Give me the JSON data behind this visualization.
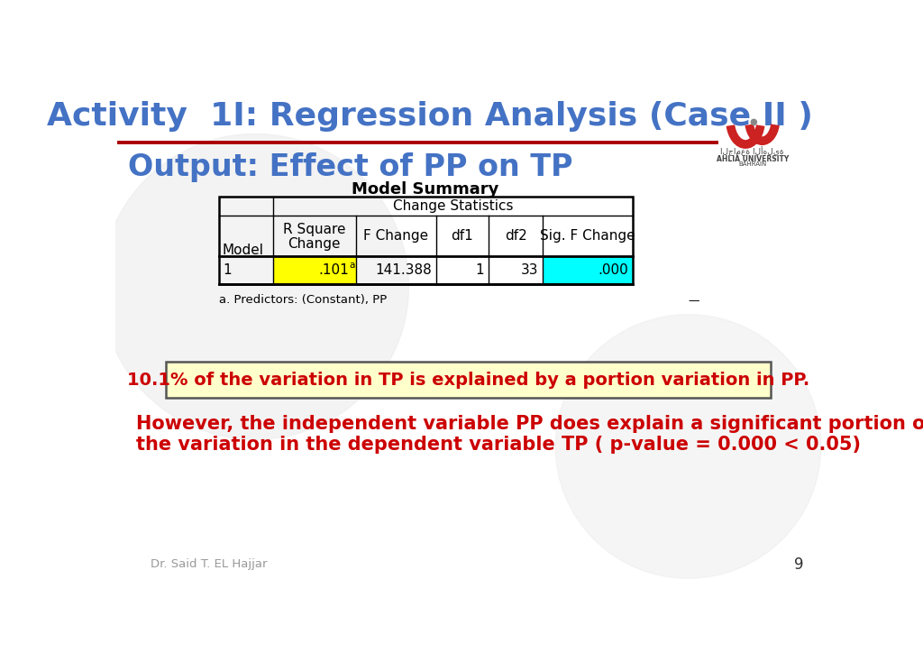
{
  "title": "Activity  1I: Regression Analysis (Case II )",
  "title_color": "#4472C4",
  "title_fontsize": 26,
  "subtitle": "Output: Effect of PP on TP",
  "subtitle_color": "#4472C4",
  "subtitle_fontsize": 24,
  "bg_color": "#FFFFFF",
  "table_title": "Model Summary",
  "table_headers_row2": [
    "Model",
    "R Square\nChange",
    "F Change",
    "df1",
    "df2",
    "Sig. F Change"
  ],
  "highlight_yellow": "#FFFF00",
  "highlight_cyan": "#00FFFF",
  "box_text": "10.1% of the variation in TP is explained by a portion variation in PP.",
  "box_bg": "#FFFFCC",
  "box_border": "#555555",
  "box_text_color": "#CC0000",
  "para_text_line1": "However, the independent variable PP does explain a significant portion of",
  "para_text_line2": "the variation in the dependent variable TP ( p-value = 0.000 < 0.05)",
  "para_text_color": "#CC0000",
  "footer_text": "Dr. Said T. EL Hajjar",
  "page_number": "9",
  "separator_color": "#AA0000",
  "logo_red": "#CC2222",
  "logo_gray": "#888888",
  "logo_text_arabic": "الجامعة الأهلية",
  "logo_text_en1": "AHLIA UNIVERSITY",
  "logo_text_en2": "BAHRAIN"
}
